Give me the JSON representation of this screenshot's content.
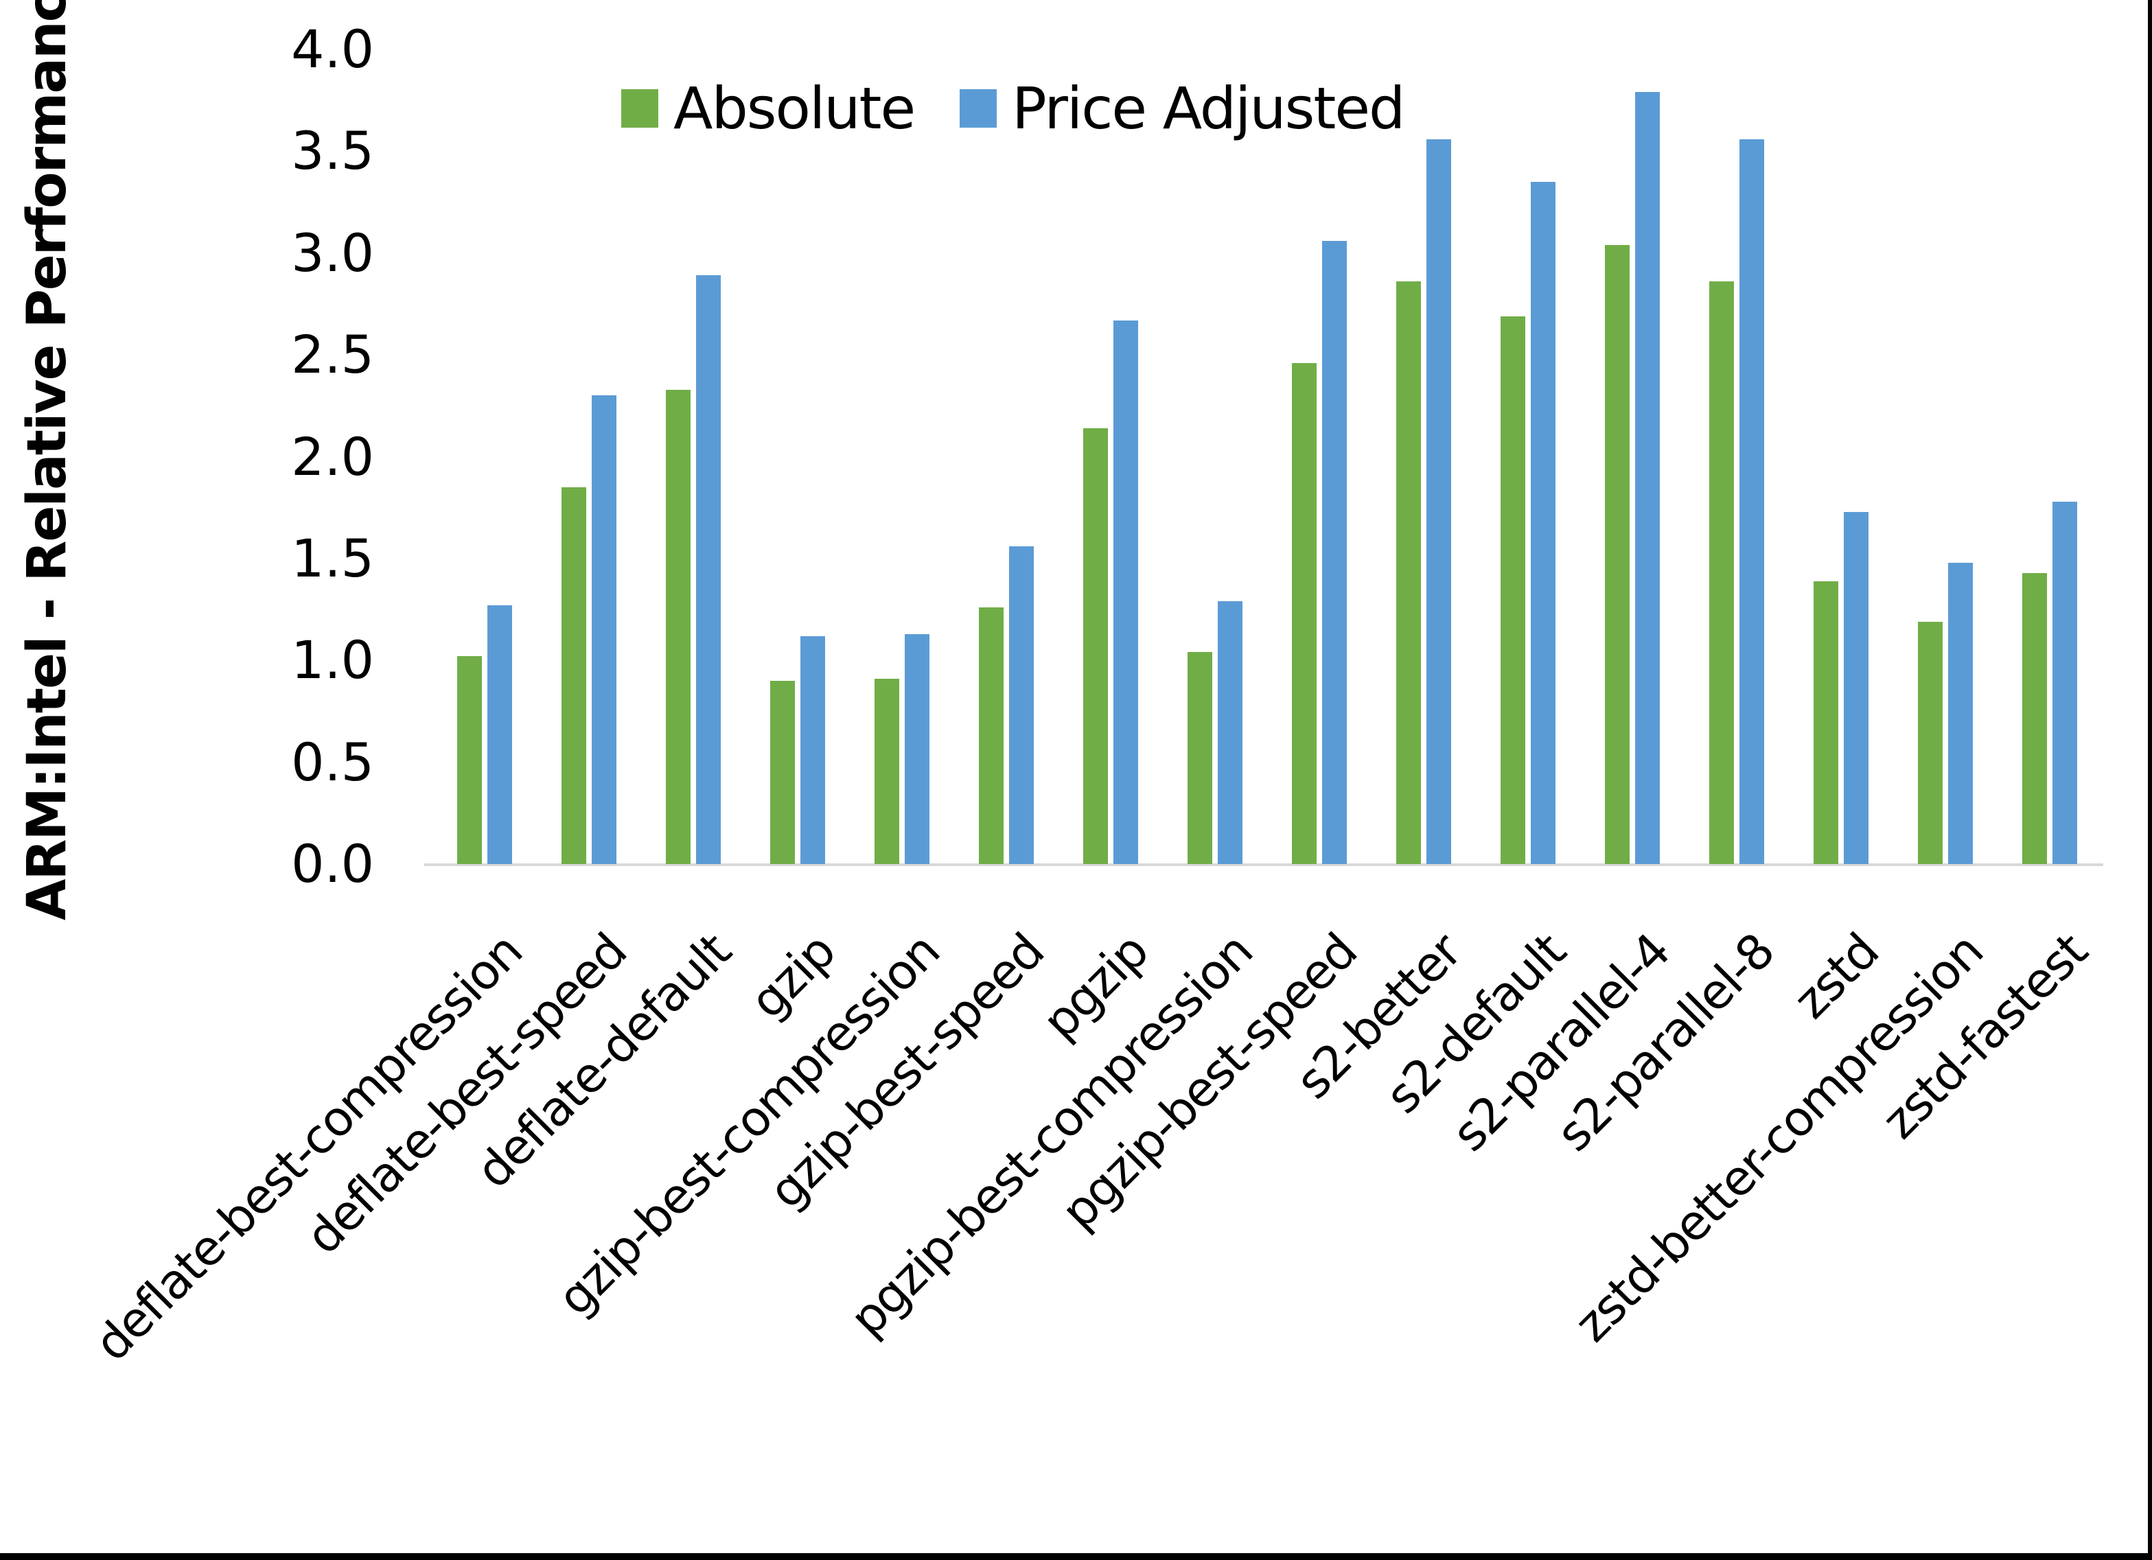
{
  "y_axis": {
    "title": "ARM:Intel - Relative Performance",
    "tick_labels": [
      "0.0",
      "0.5",
      "1.0",
      "1.5",
      "2.0",
      "2.5",
      "3.0",
      "3.5",
      "4.0"
    ]
  },
  "chart_data": {
    "type": "bar",
    "title": "",
    "xlabel": "",
    "ylabel": "ARM:Intel - Relative Performance",
    "ylim": [
      0.0,
      4.0
    ],
    "y_tick_step": 0.5,
    "grid": false,
    "legend_position": "top-center",
    "categories": [
      "deflate-best-compression",
      "deflate-best-speed",
      "deflate-default",
      "gzip",
      "gzip-best-compression",
      "gzip-best-speed",
      "pgzip",
      "pgzip-best-compression",
      "pgzip-best-speed",
      "s2-better",
      "s2-default",
      "s2-parallel-4",
      "s2-parallel-8",
      "zstd",
      "zstd-better-compression",
      "zstd-fastest"
    ],
    "series": [
      {
        "name": "Absolute",
        "color": "#70AD47",
        "values": [
          1.02,
          1.85,
          2.33,
          0.9,
          0.91,
          1.26,
          2.14,
          1.04,
          2.46,
          2.86,
          2.69,
          3.04,
          2.86,
          1.39,
          1.19,
          1.43
        ]
      },
      {
        "name": "Price Adjusted",
        "color": "#5B9BD5",
        "values": [
          1.27,
          2.3,
          2.89,
          1.12,
          1.13,
          1.56,
          2.67,
          1.29,
          3.06,
          3.56,
          3.35,
          3.79,
          3.56,
          1.73,
          1.48,
          1.78
        ]
      }
    ]
  },
  "style_colors": {
    "axis_line": "#D9D9D9",
    "text": "#000000",
    "frame": "#000000",
    "background": "#FFFFFF"
  }
}
